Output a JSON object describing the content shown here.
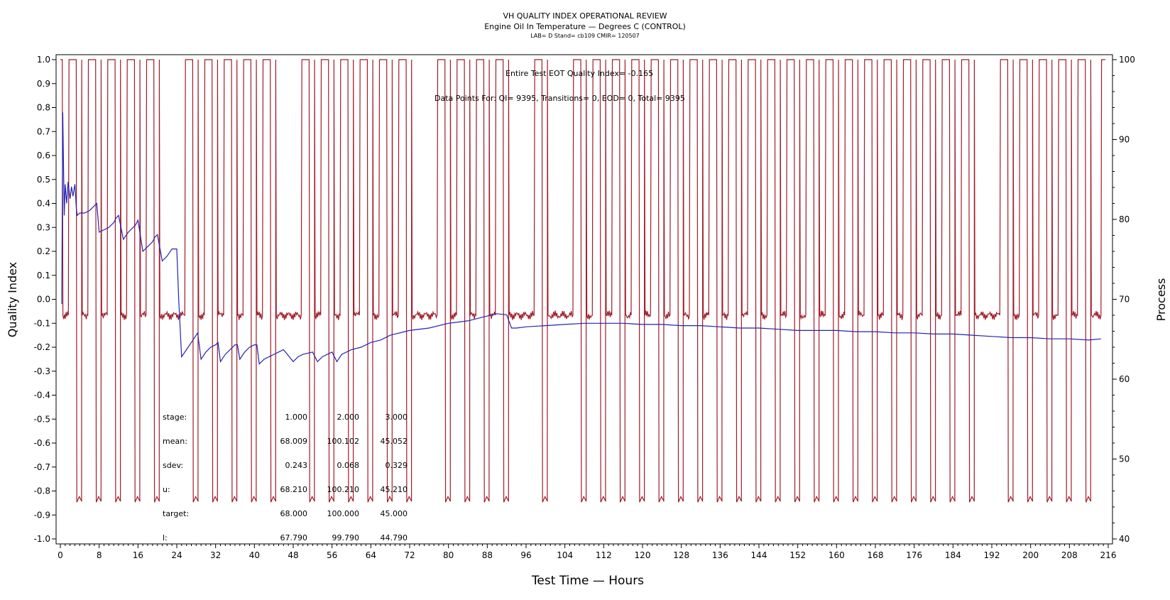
{
  "header": {
    "title": "VH QUALITY INDEX OPERATIONAL REVIEW",
    "subtitle": "Engine Oil In Temperature — Degrees C (CONTROL)",
    "info": "LAB= D Stand= cb109 CMIR= 120507"
  },
  "annotations": {
    "quality_index_line": "Entire Test EOT Quality Index=  -0.165",
    "data_points_line": "Data Points For: QI=  9395, Transitions=     0, EOD=     0, Total=  9395"
  },
  "stats_table": {
    "rows": [
      {
        "label": "stage:",
        "values": [
          "1.000",
          "2.000",
          "3.000"
        ]
      },
      {
        "label": "mean:",
        "values": [
          "68.009",
          "100.102",
          "45.052"
        ]
      },
      {
        "label": "sdev:",
        "values": [
          "0.243",
          "0.068",
          "0.329"
        ]
      },
      {
        "label": "u:",
        "values": [
          "68.210",
          "100.210",
          "45.210"
        ]
      },
      {
        "label": "target:",
        "values": [
          "68.000",
          "100.000",
          "45.000"
        ]
      },
      {
        "label": "l:",
        "values": [
          "67.790",
          "99.790",
          "44.790"
        ]
      }
    ]
  },
  "colors": {
    "quality_index": "#2323b4",
    "process": "#a01c28",
    "axis": "#000000"
  },
  "chart_data": {
    "type": "line",
    "xlabel": "Test Time — Hours",
    "ylabel": "Quality Index",
    "y2label": "Process",
    "xlim": [
      0,
      216
    ],
    "ylim": [
      -1.0,
      1.0
    ],
    "y2lim": [
      40,
      100
    ],
    "x_ticks": [
      "0",
      "8",
      "16",
      "24",
      "32",
      "40",
      "48",
      "56",
      "64",
      "72",
      "80",
      "88",
      "96",
      "104",
      "112",
      "120",
      "128",
      "136",
      "144",
      "152",
      "160",
      "168",
      "176",
      "184",
      "192",
      "200",
      "208",
      "216"
    ],
    "y_ticks": [
      "-1.0",
      "-0.9",
      "-0.8",
      "-0.7",
      "-0.6",
      "-0.5",
      "-0.4",
      "-0.3",
      "-0.2",
      "-0.1",
      "0.0",
      "0.1",
      "0.2",
      "0.3",
      "0.4",
      "0.5",
      "0.6",
      "0.7",
      "0.8",
      "0.9",
      "1.0"
    ],
    "y2_ticks": [
      "40",
      "50",
      "60",
      "70",
      "80",
      "90",
      "100"
    ],
    "series": [
      {
        "axis": "left",
        "x": [
          0.3,
          0.5,
          0.8,
          1.0,
          1.3,
          1.6,
          2.0,
          2.3,
          2.6,
          3.0,
          3.3,
          3.5,
          4.0,
          5.0,
          6.0,
          7.0,
          7.5,
          8.0,
          9.0,
          10.0,
          11.0,
          11.5,
          12.0,
          13.0,
          14.0,
          15.0,
          15.5,
          16.0,
          17.0,
          18.0,
          19.0,
          19.5,
          20.0,
          21.0,
          22.0,
          23.0,
          24.0,
          24.4,
          25.0,
          26.0,
          27.0,
          28.0,
          28.3,
          29.0,
          30.0,
          31.0,
          32.0,
          32.5,
          33.0,
          34.0,
          35.0,
          36.0,
          36.5,
          37.0,
          38.0,
          39.0,
          40.0,
          40.5,
          41.0,
          42.0,
          44.0,
          45.0,
          46.0,
          48.0,
          49.0,
          50.0,
          52.0,
          53.0,
          54.0,
          56.0,
          57.0,
          58.0,
          60.0,
          62.0,
          64.0,
          66.0,
          68.0,
          72.0,
          76.0,
          80.0,
          84.0,
          88.0,
          90.0,
          92.0,
          93.0,
          94.0,
          96.0,
          100.0,
          104.0,
          108.0,
          112.0,
          116.0,
          120.0,
          124.0,
          128.0,
          132.0,
          136.0,
          140.0,
          144.0,
          148.0,
          152.0,
          156.0,
          160.0,
          164.0,
          168.0,
          172.0,
          176.0,
          180.0,
          184.0,
          188.0,
          192.0,
          196.0,
          200.0,
          204.0,
          208.0,
          212.0,
          214.5
        ],
        "y": [
          -0.02,
          0.78,
          0.35,
          0.48,
          0.4,
          0.49,
          0.42,
          0.47,
          0.43,
          0.48,
          0.38,
          0.35,
          0.36,
          0.36,
          0.37,
          0.39,
          0.4,
          0.28,
          0.29,
          0.3,
          0.32,
          0.34,
          0.35,
          0.25,
          0.28,
          0.3,
          0.31,
          0.33,
          0.2,
          0.22,
          0.24,
          0.26,
          0.27,
          0.16,
          0.18,
          0.21,
          0.21,
          0.0,
          -0.24,
          -0.21,
          -0.18,
          -0.15,
          -0.14,
          -0.25,
          -0.22,
          -0.2,
          -0.19,
          -0.18,
          -0.26,
          -0.23,
          -0.21,
          -0.19,
          -0.19,
          -0.25,
          -0.22,
          -0.2,
          -0.19,
          -0.19,
          -0.27,
          -0.25,
          -0.23,
          -0.22,
          -0.21,
          -0.26,
          -0.24,
          -0.23,
          -0.22,
          -0.26,
          -0.24,
          -0.22,
          -0.26,
          -0.23,
          -0.21,
          -0.2,
          -0.18,
          -0.17,
          -0.15,
          -0.13,
          -0.12,
          -0.1,
          -0.09,
          -0.07,
          -0.06,
          -0.065,
          -0.12,
          -0.12,
          -0.115,
          -0.11,
          -0.105,
          -0.1,
          -0.1,
          -0.1,
          -0.105,
          -0.105,
          -0.11,
          -0.11,
          -0.115,
          -0.12,
          -0.12,
          -0.125,
          -0.13,
          -0.13,
          -0.13,
          -0.135,
          -0.135,
          -0.14,
          -0.14,
          -0.145,
          -0.145,
          -0.15,
          -0.155,
          -0.16,
          -0.16,
          -0.165,
          -0.165,
          -0.17,
          -0.165
        ]
      },
      {
        "axis": "right",
        "cycle_starts": [
          0.4,
          4.4,
          8.4,
          12.4,
          16.4,
          20.4,
          28.4,
          32.4,
          36.4,
          40.4,
          44.4,
          52.4,
          56.4,
          60.4,
          64.4,
          68.4,
          72.4,
          80.4,
          84.4,
          88.4,
          92.4,
          100.4,
          108.4,
          112.4,
          116.4,
          120.4,
          124.4,
          128.4,
          132.4,
          136.4,
          140.4,
          144.4,
          148.4,
          152.4,
          156.4,
          160.4,
          164.4,
          168.4,
          172.4,
          176.4,
          180.4,
          184.4,
          188.4,
          196.4,
          200.4,
          204.4,
          208.4,
          212.4
        ],
        "stage_levels": [
          68,
          100,
          45
        ],
        "stage_durations_hours": [
          1.5,
          1.5,
          1.0
        ],
        "final_level": 100
      }
    ]
  }
}
